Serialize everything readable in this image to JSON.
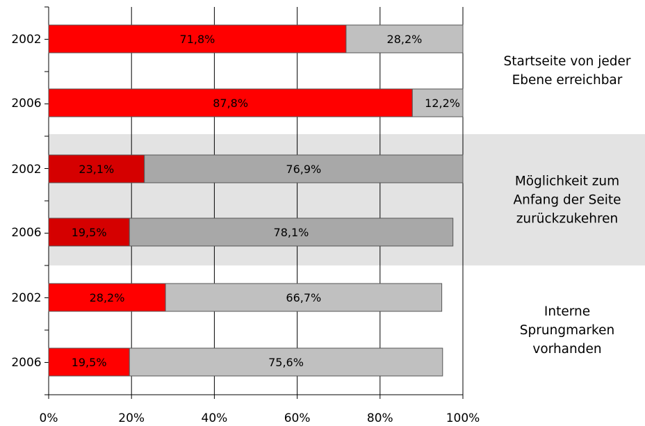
{
  "chart_data": {
    "type": "bar",
    "orientation": "horizontal",
    "stacked": true,
    "xlim": [
      0,
      100
    ],
    "x_ticks": [
      "0%",
      "20%",
      "40%",
      "60%",
      "80%",
      "100%"
    ],
    "grid": "vertical lines at x ticks",
    "series_colors": [
      "#ff0000",
      "#c0c0c0"
    ],
    "groups": [
      {
        "label_lines": [
          "Startseite von jeder",
          "Ebene erreichbar"
        ],
        "shaded": false,
        "bars": [
          {
            "year": "2002",
            "values": [
              71.8,
              28.2
            ],
            "labels": [
              "71,8%",
              "28,2%"
            ]
          },
          {
            "year": "2006",
            "values": [
              87.8,
              12.2
            ],
            "labels": [
              "87,8%",
              "12,2%"
            ]
          }
        ]
      },
      {
        "label_lines": [
          "Möglichkeit zum",
          "Anfang der Seite",
          "zurückzukehren"
        ],
        "shaded": true,
        "shaded_colors": [
          "#d50000",
          "#a8a8a8"
        ],
        "bars": [
          {
            "year": "2002",
            "values": [
              23.1,
              76.9
            ],
            "labels": [
              "23,1%",
              "76,9%"
            ]
          },
          {
            "year": "2006",
            "values": [
              19.5,
              78.1
            ],
            "labels": [
              "19,5%",
              "78,1%"
            ]
          }
        ]
      },
      {
        "label_lines": [
          "Interne",
          "Sprungmarken",
          "vorhanden"
        ],
        "shaded": false,
        "bars": [
          {
            "year": "2002",
            "values": [
              28.2,
              66.7
            ],
            "labels": [
              "28,2%",
              "66,7%"
            ]
          },
          {
            "year": "2006",
            "values": [
              19.5,
              75.6
            ],
            "labels": [
              "19,5%",
              "75,6%"
            ]
          }
        ]
      }
    ]
  }
}
